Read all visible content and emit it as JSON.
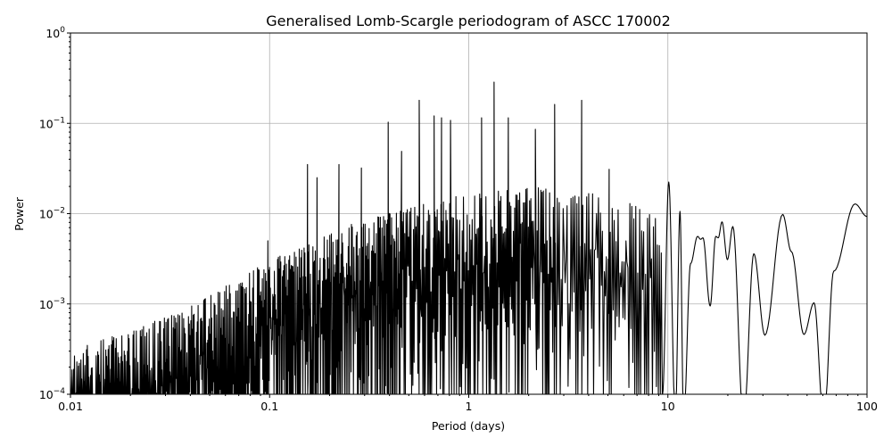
{
  "chart_data": {
    "type": "line",
    "title": "Generalised Lomb-Scargle periodogram of ASCC 170002",
    "xlabel": "Period (days)",
    "ylabel": "Power",
    "xscale": "log",
    "yscale": "log",
    "xlim": [
      0.01,
      100
    ],
    "ylim": [
      0.0001,
      1
    ],
    "x_ticks": [
      0.01,
      0.1,
      1,
      10,
      100
    ],
    "x_ticklabels": [
      "0.01",
      "0.1",
      "1",
      "10",
      "100"
    ],
    "y_ticks": [
      0.0001,
      0.001,
      0.01,
      0.1,
      1
    ],
    "y_tick_base": "10",
    "y_tick_exponents": [
      "−4",
      "−3",
      "−2",
      "−1",
      "0"
    ],
    "grid": true,
    "line_color": "#000000",
    "grid_color": "#b0b0b0",
    "noise_envelope_upper": [
      [
        0.01,
        0.0003
      ],
      [
        0.035,
        0.0008
      ],
      [
        0.1,
        0.003
      ],
      [
        0.27,
        0.008
      ],
      [
        0.77,
        0.015
      ],
      [
        2.15,
        0.02
      ],
      [
        6.0,
        0.015
      ],
      [
        9.6,
        0.008
      ]
    ],
    "peaks": [
      [
        1.34,
        0.286
      ],
      [
        3.69,
        0.18
      ],
      [
        2.7,
        0.162
      ],
      [
        0.564,
        0.18
      ],
      [
        0.67,
        0.121
      ],
      [
        0.73,
        0.115
      ],
      [
        0.81,
        0.108
      ],
      [
        1.16,
        0.115
      ],
      [
        1.58,
        0.115
      ],
      [
        2.16,
        0.086
      ],
      [
        0.394,
        0.103
      ],
      [
        0.223,
        0.035
      ],
      [
        0.155,
        0.035
      ],
      [
        0.289,
        0.032
      ],
      [
        0.46,
        0.049
      ],
      [
        5.07,
        0.031
      ],
      [
        0.173,
        0.025
      ],
      [
        0.098,
        0.005
      ]
    ],
    "long_period_curve": [
      [
        9.4,
        0.0001
      ],
      [
        10.1,
        0.0224
      ],
      [
        10.9,
        5e-05
      ],
      [
        11.5,
        0.0106
      ],
      [
        12.0,
        5e-05
      ],
      [
        13.0,
        0.0028
      ],
      [
        14.1,
        0.0056
      ],
      [
        14.6,
        0.0052
      ],
      [
        15.0,
        0.0054
      ],
      [
        16.3,
        0.00095
      ],
      [
        17.4,
        0.0056
      ],
      [
        17.9,
        0.0054
      ],
      [
        18.7,
        0.0081
      ],
      [
        19.9,
        0.0031
      ],
      [
        21.2,
        0.0072
      ],
      [
        24.0,
        5e-05
      ],
      [
        27.0,
        0.0036
      ],
      [
        30.7,
        0.00045
      ],
      [
        37.7,
        0.0098
      ],
      [
        41.7,
        0.0038
      ],
      [
        48.2,
        0.00046
      ],
      [
        54.2,
        0.00103
      ],
      [
        60.7,
        5e-05
      ],
      [
        68.0,
        0.0023
      ],
      [
        87.0,
        0.0128
      ],
      [
        100,
        0.0093
      ]
    ]
  }
}
